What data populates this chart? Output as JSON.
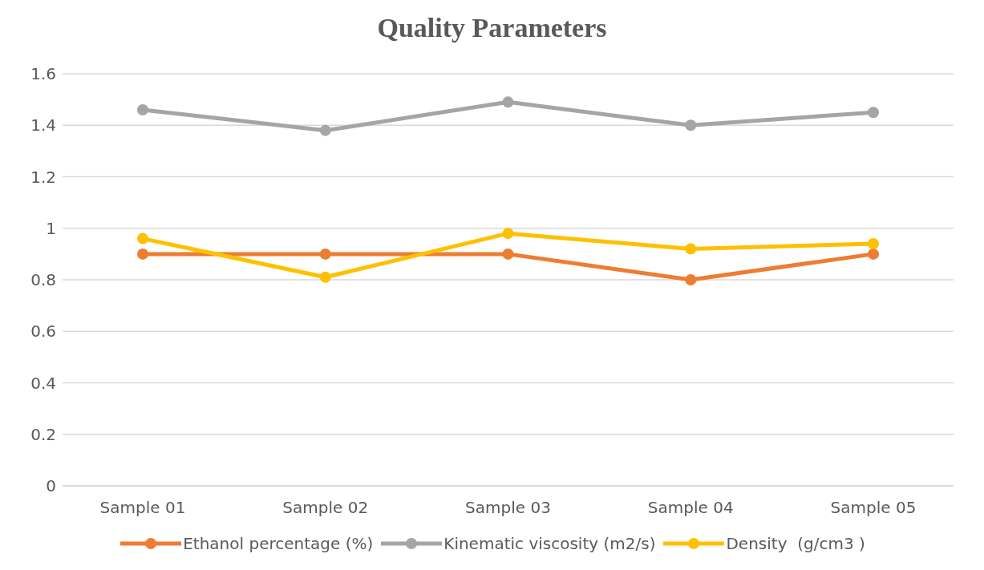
{
  "chart_data": {
    "type": "line",
    "title": "Quality Parameters",
    "categories": [
      "Sample 01",
      "Sample 02",
      "Sample 03",
      "Sample 04",
      "Sample 05"
    ],
    "series": [
      {
        "name": "Ethanol percentage (%)",
        "color": "#ed7d31",
        "values": [
          0.9,
          0.9,
          0.9,
          0.8,
          0.9
        ]
      },
      {
        "name": "Kinematic viscosity (m2/s)",
        "color": "#a5a5a5",
        "values": [
          1.46,
          1.38,
          1.49,
          1.4,
          1.45
        ]
      },
      {
        "name": "Density  (g/cm3 )",
        "color": "#ffc000",
        "values": [
          0.96,
          0.81,
          0.98,
          0.92,
          0.94
        ]
      }
    ],
    "ylim": [
      0,
      1.6
    ],
    "yticks": [
      0,
      0.2,
      0.4,
      0.6,
      0.8,
      1,
      1.2,
      1.4,
      1.6
    ],
    "grid": "y",
    "legend": "bottom",
    "marker": "circle",
    "line_style": "solid"
  }
}
